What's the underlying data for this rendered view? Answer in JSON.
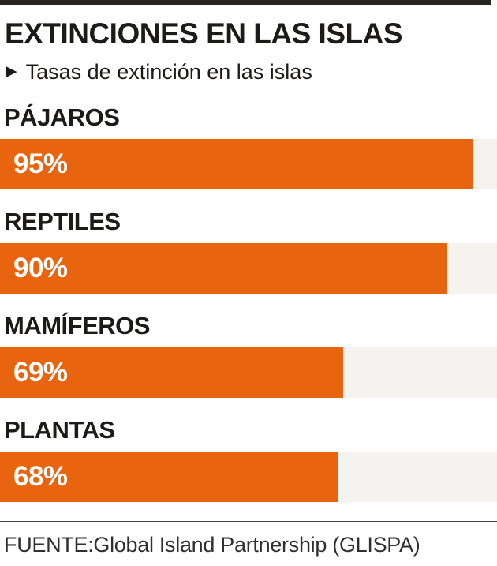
{
  "header": {
    "title": "EXTINCIONES EN LAS ISLAS",
    "kicker_marker": "▶",
    "subtitle": "Tasas de extinción en las islas"
  },
  "chart_data": {
    "type": "bar",
    "orientation": "horizontal",
    "title": "EXTINCIONES EN LAS ISLAS",
    "subtitle": "Tasas de extinción en las islas",
    "categories": [
      "PÁJAROS",
      "REPTILES",
      "MAMÍFEROS",
      "PLANTAS"
    ],
    "values": [
      95,
      90,
      69,
      68
    ],
    "value_labels": [
      "95%",
      "90%",
      "69%",
      "68%"
    ],
    "unit": "%",
    "xlim": [
      0,
      100
    ],
    "grid": false,
    "legend": "none",
    "colors": {
      "bar": "#e8640f",
      "track": "#f5f3f0",
      "value_text": "#ffffff",
      "label_text": "#1d1b19"
    }
  },
  "footer": {
    "source": "FUENTE:Global Island Partnership (GLISPA)"
  },
  "colors": {
    "background": "#ffffff",
    "top_rule": "#282421",
    "divider": "#3f3f3f",
    "source_text": "#2f2f2f"
  }
}
